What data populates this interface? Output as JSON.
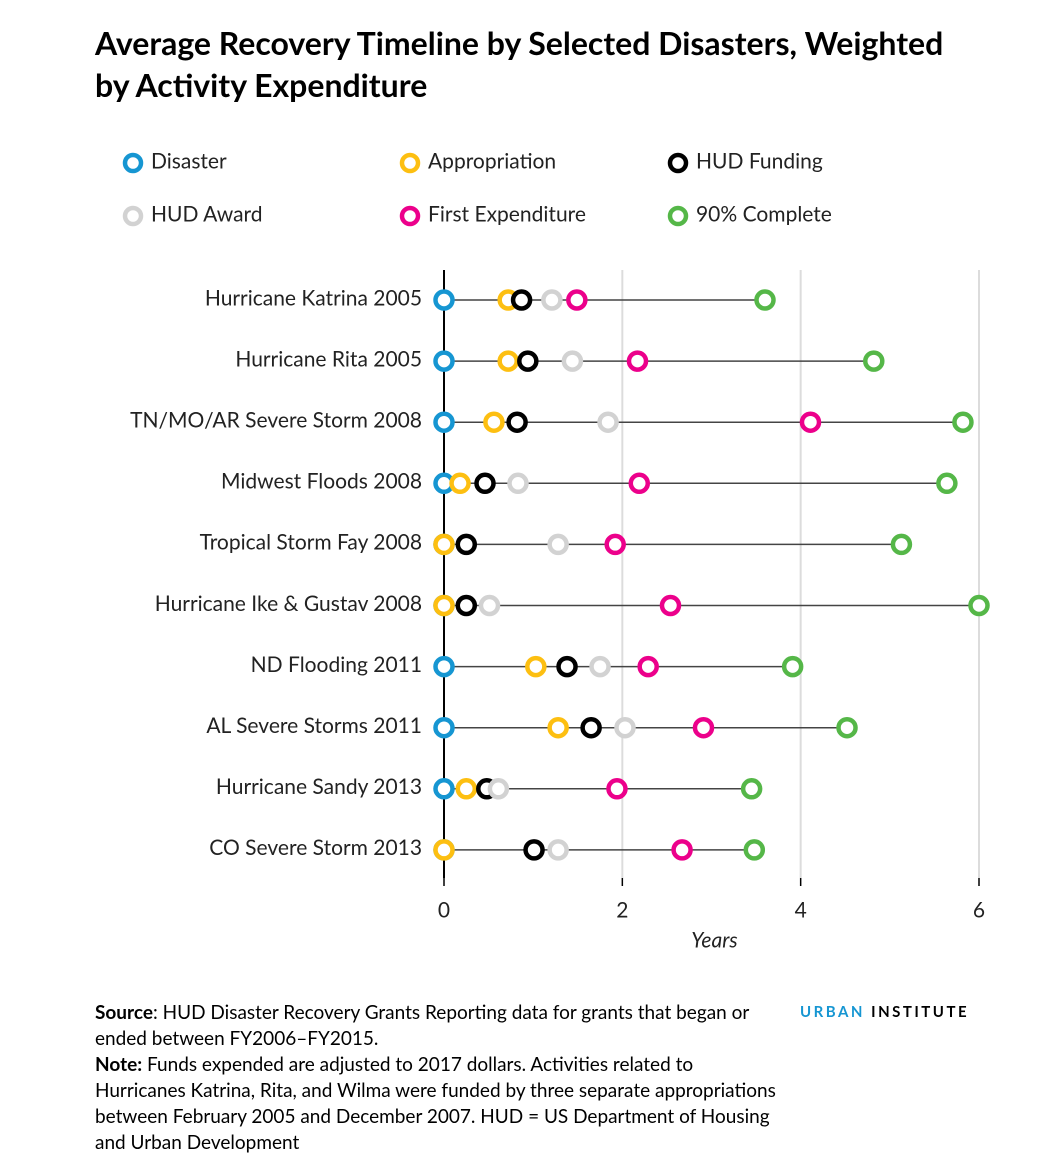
{
  "chart_data": {
    "type": "dot",
    "title": "Average Recovery Timeline by Selected Disasters, Weighted by Activity Expenditure",
    "x_label": "Years",
    "categories": [
      "Hurricane Katrina 2005",
      "Hurricane Rita 2005",
      "TN/MO/AR Severe Storm 2008",
      "Midwest Floods 2008",
      "Tropical Storm Fay 2008",
      "Hurricane Ike & Gustav 2008",
      "ND Flooding 2011",
      "AL Severe Storms 2011",
      "Hurricane Sandy 2013",
      "CO Severe Storm 2013"
    ],
    "series": [
      {
        "name": "Disaster",
        "color": "#1696d2",
        "values": [
          0,
          0,
          0,
          0,
          0,
          0,
          0,
          0,
          0,
          0
        ]
      },
      {
        "name": "Appropriation",
        "color": "#fdbf11",
        "values": [
          0.72,
          0.72,
          0.56,
          0.18,
          0,
          0,
          1.03,
          1.28,
          0.25,
          0
        ]
      },
      {
        "name": "HUD Funding",
        "color": "#000000",
        "values": [
          0.87,
          0.94,
          0.82,
          0.46,
          0.25,
          0.25,
          1.38,
          1.65,
          0.48,
          1.01
        ]
      },
      {
        "name": "HUD Award",
        "color": "#d2d2d2",
        "values": [
          1.21,
          1.44,
          1.84,
          0.83,
          1.28,
          0.51,
          1.75,
          2.03,
          0.61,
          1.28
        ]
      },
      {
        "name": "First Expenditure",
        "color": "#ec008b",
        "values": [
          1.49,
          2.17,
          4.11,
          2.19,
          1.92,
          2.54,
          2.29,
          2.91,
          1.94,
          2.67
        ]
      },
      {
        "name": "90% Complete",
        "color": "#55b748",
        "values": [
          3.6,
          4.82,
          5.82,
          5.64,
          5.13,
          6.0,
          3.91,
          4.52,
          3.45,
          3.48
        ]
      }
    ],
    "xlim": [
      0,
      6
    ],
    "xticks": [
      0,
      2,
      4,
      6
    ],
    "grid": true,
    "source_label": "Source",
    "source_text": ": HUD Disaster Recovery Grants Reporting data for grants that began or ended between FY2006–FY2015.",
    "note_label": "Note:",
    "note_text": " Funds expended are adjusted to 2017 dollars. Activities related to Hurricanes Katrina, Rita, and Wilma were funded by three separate appropriations between February 2005 and December 2007. HUD = US Department of Housing and Urban Development",
    "logo_left": "URBAN",
    "logo_right": "INSTITUTE"
  }
}
